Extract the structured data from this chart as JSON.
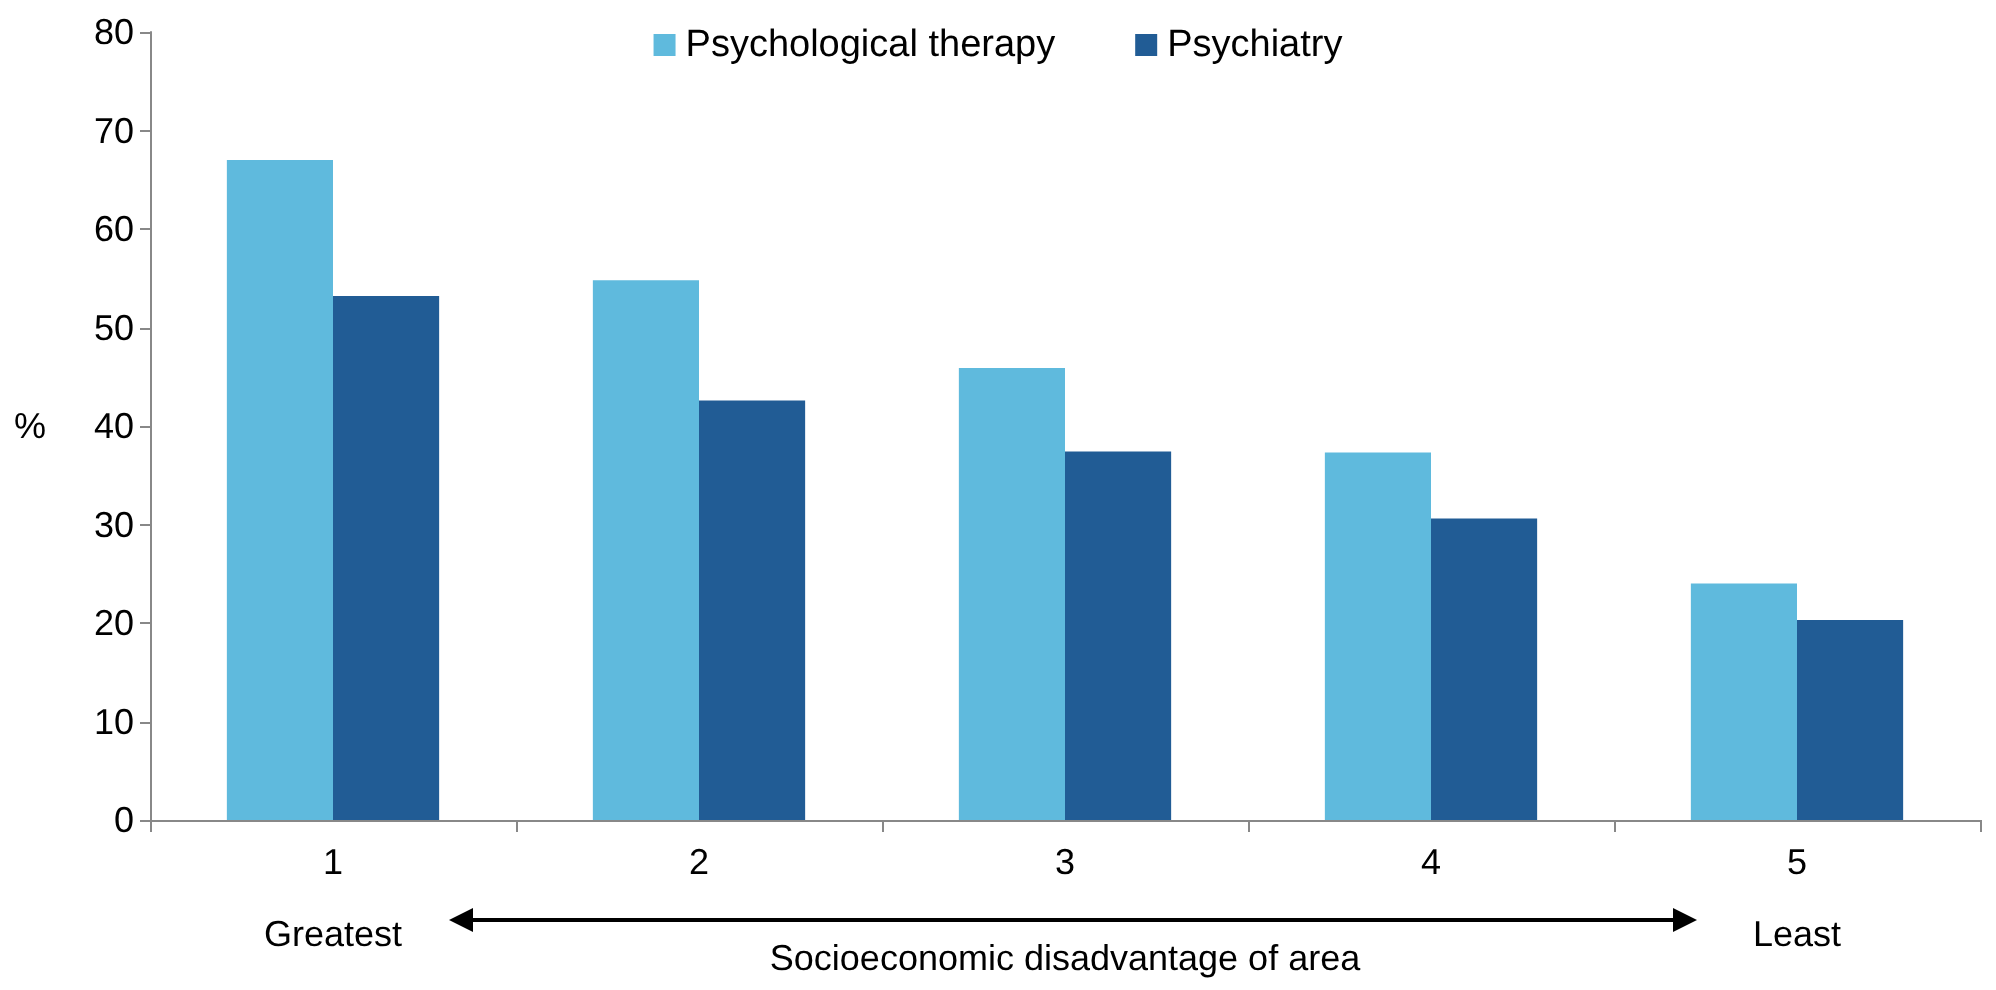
{
  "chart_data": {
    "type": "bar",
    "ylabel": "%",
    "xlabel": "Socioeconomic disadvantage of area",
    "categories": [
      "1",
      "2",
      "3",
      "4",
      "5"
    ],
    "series": [
      {
        "name": "Psychological therapy",
        "color": "#5fbadd",
        "values": [
          67,
          54.8,
          45.9,
          37.3,
          24
        ]
      },
      {
        "name": "Psychiatry",
        "color": "#215c95",
        "values": [
          53.2,
          42.6,
          37.4,
          30.6,
          20.3
        ]
      }
    ],
    "ylim": [
      0,
      80
    ],
    "yticks": [
      0,
      10,
      20,
      30,
      40,
      50,
      60,
      70,
      80
    ],
    "grid": false,
    "legend": "top",
    "annotations": [
      "Greatest",
      "Least"
    ]
  }
}
